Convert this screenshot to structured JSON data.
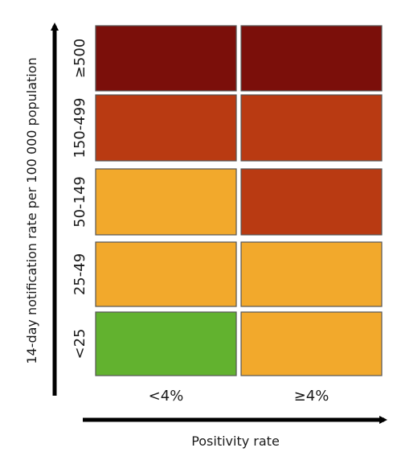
{
  "chart_data": {
    "type": "heatmap",
    "x_categories": [
      "<4%",
      "≥4%"
    ],
    "y_categories": [
      "<25",
      "25-49",
      "50-149",
      "150-499",
      "≥500"
    ],
    "xlabel": "Positivity rate",
    "ylabel": "14-day notification rate per 100 000 population",
    "colors": {
      "green": "#62b22f",
      "orange": "#f2a92c",
      "red": "#b93a12",
      "dark_red": "#7b0f0a"
    },
    "cells": [
      [
        "green",
        "orange"
      ],
      [
        "orange",
        "orange"
      ],
      [
        "orange",
        "red"
      ],
      [
        "red",
        "red"
      ],
      [
        "dark_red",
        "dark_red"
      ]
    ],
    "grid": false,
    "legend": "none"
  }
}
